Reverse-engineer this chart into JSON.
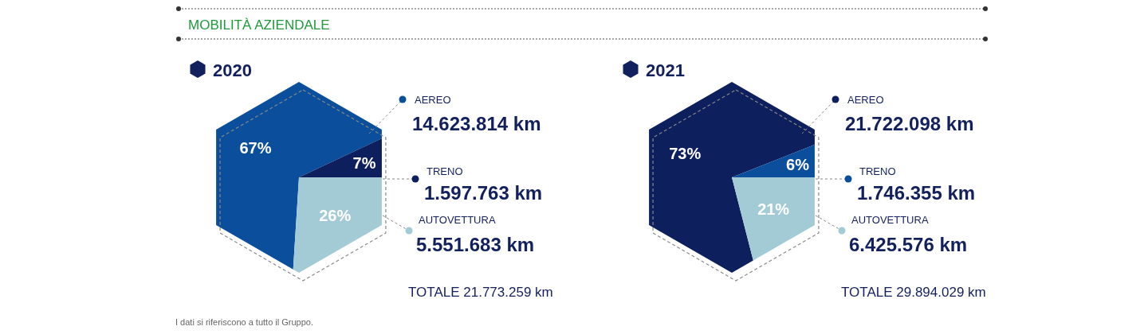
{
  "chart_data": [
    {
      "type": "other",
      "title": "2020",
      "subtitle": "MOBILITÀ AZIENDALE",
      "categories": [
        "AEREO",
        "TRENO",
        "AUTOVETTURA"
      ],
      "values": [
        67,
        7,
        26
      ],
      "colors": [
        "#0b4f9c",
        "#0d1f5c",
        "#a3cbd6"
      ],
      "value_labels": [
        "67%",
        "7%",
        "26%"
      ],
      "annotations": [
        "14.623.814 km",
        "1.597.763 km",
        "5.551.683 km",
        "TOTALE 21.773.259 km",
        "I dati si riferiscono a tutto il Gruppo."
      ]
    },
    {
      "type": "other",
      "title": "2021",
      "categories": [
        "AEREO",
        "TRENO",
        "AUTOVETTURA"
      ],
      "values": [
        73,
        6,
        21
      ],
      "colors": [
        "#0d1f5c",
        "#0b4f9c",
        "#a3cbd6"
      ],
      "value_labels": [
        "73%",
        "6%",
        "21%"
      ],
      "annotations": [
        "21.722.098 km",
        "1.746.355 km",
        "6.425.576 km",
        "TOTALE 29.894.029 km"
      ]
    }
  ]
}
